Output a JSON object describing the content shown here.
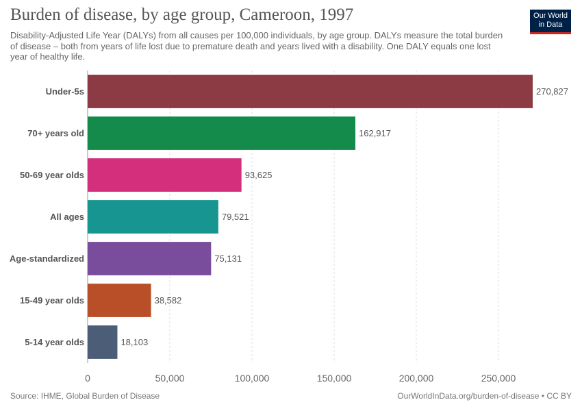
{
  "header": {
    "title": "Burden of disease, by age group, Cameroon, 1997",
    "subtitle": "Disability-Adjusted Life Year (DALYs) from all causes per 100,000 individuals, by age group. DALYs measure the total burden of disease – both from years of life lost due to premature death and years lived with a disability. One DALY equals one lost year of healthy life."
  },
  "logo": {
    "line1": "Our World",
    "line2": "in Data",
    "colors": {
      "background": "#002147",
      "accent": "#ce261e"
    }
  },
  "footer": {
    "source": "Source: IHME, Global Burden of Disease",
    "credit": "OurWorldInData.org/burden-of-disease • CC BY"
  },
  "chart_data": {
    "type": "bar",
    "orientation": "horizontal",
    "categories": [
      "Under-5s",
      "70+ years old",
      "50-69 year olds",
      "All ages",
      "Age-standardized",
      "15-49 year olds",
      "5-14 year olds"
    ],
    "values": [
      270827,
      162917,
      93625,
      79521,
      75131,
      38582,
      18103
    ],
    "value_labels": [
      "270,827",
      "162,917",
      "93,625",
      "79,521",
      "75,131",
      "38,582",
      "18,103"
    ],
    "colors": [
      "#8c3a44",
      "#148a4b",
      "#d42f7d",
      "#179590",
      "#7a4d9c",
      "#b94f28",
      "#4c5d78"
    ],
    "xlim": [
      0,
      280000
    ],
    "xticks": [
      0,
      50000,
      100000,
      150000,
      200000,
      250000
    ],
    "xtick_labels": [
      "0",
      "50,000",
      "100,000",
      "150,000",
      "200,000",
      "250,000"
    ],
    "grid": "vertical dashed"
  }
}
